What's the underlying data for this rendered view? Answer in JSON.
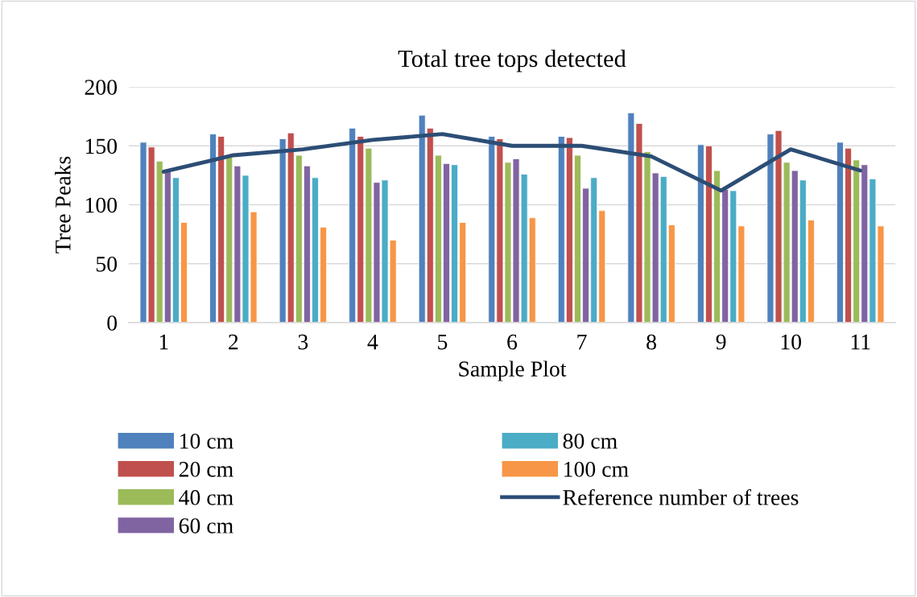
{
  "chart_data": {
    "type": "bar",
    "title": "Total tree tops detected",
    "xlabel": "Sample Plot",
    "ylabel": "Tree Peaks",
    "categories": [
      "1",
      "2",
      "3",
      "4",
      "5",
      "6",
      "7",
      "8",
      "9",
      "10",
      "11"
    ],
    "series": [
      {
        "name": "10 cm",
        "color": "#4f81bd",
        "values": [
          153,
          160,
          156,
          165,
          176,
          158,
          158,
          178,
          151,
          160,
          153
        ]
      },
      {
        "name": "20 cm",
        "color": "#c0504d",
        "values": [
          149,
          158,
          161,
          158,
          165,
          156,
          157,
          169,
          150,
          163,
          148
        ]
      },
      {
        "name": "40 cm",
        "color": "#9bbb59",
        "values": [
          137,
          141,
          142,
          148,
          142,
          136,
          142,
          145,
          129,
          136,
          138
        ]
      },
      {
        "name": "60 cm",
        "color": "#8064a2",
        "values": [
          128,
          133,
          133,
          119,
          135,
          139,
          114,
          127,
          113,
          129,
          134
        ]
      },
      {
        "name": "80 cm",
        "color": "#4bacc6",
        "values": [
          123,
          125,
          123,
          121,
          134,
          126,
          123,
          124,
          112,
          121,
          122
        ]
      },
      {
        "name": "100 cm",
        "color": "#f79646",
        "values": [
          85,
          94,
          81,
          70,
          85,
          89,
          95,
          83,
          82,
          87,
          82
        ]
      },
      {
        "name": "Reference number of trees",
        "type": "line",
        "color": "#2c4d75",
        "values": [
          128,
          142,
          147,
          155,
          160,
          150,
          150,
          141,
          112,
          147,
          129
        ]
      }
    ],
    "ylim": [
      0,
      200
    ],
    "yticks": [
      0,
      50,
      100,
      150,
      200
    ],
    "grid": "y",
    "legend": "bottom",
    "marker": "none",
    "line_style": "solid"
  }
}
